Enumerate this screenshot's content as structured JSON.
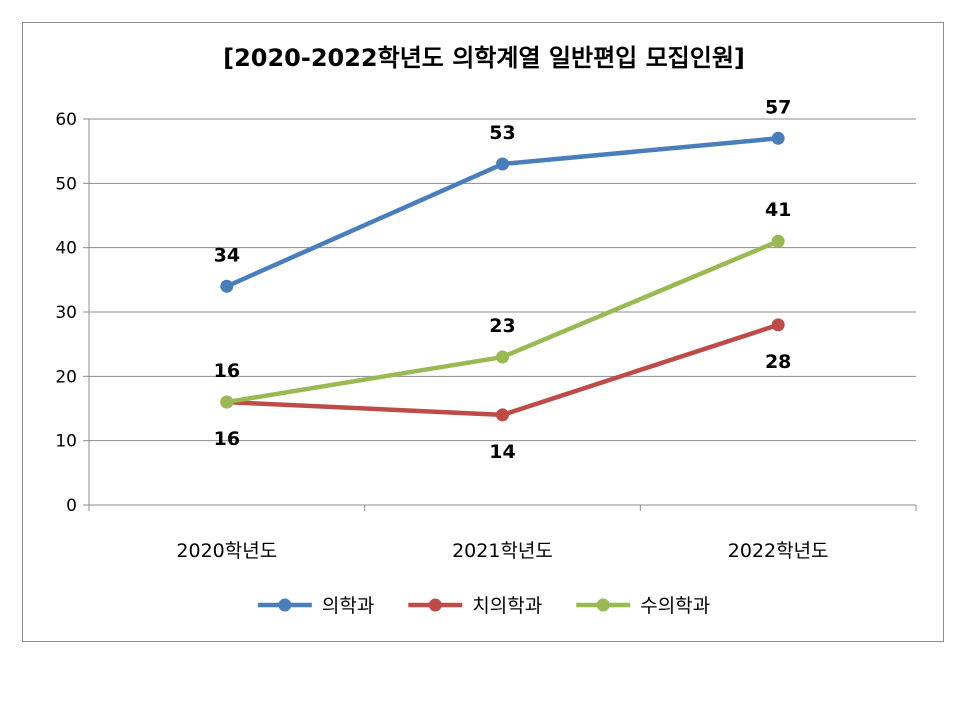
{
  "chart_data": {
    "type": "line",
    "title": "[2020-2022학년도 의학계열 일반편입 모집인원]",
    "xlabel": "",
    "ylabel": "",
    "categories": [
      "2020학년도",
      "2021학년도",
      "2022학년도"
    ],
    "ylim": [
      0,
      60
    ],
    "yticks": [
      0,
      10,
      20,
      30,
      40,
      50,
      60
    ],
    "grid": true,
    "legend_position": "bottom",
    "series": [
      {
        "name": "의학과",
        "values": [
          34,
          53,
          57
        ],
        "color": "#4a7ebb",
        "label_position": "above"
      },
      {
        "name": "치의학과",
        "values": [
          16,
          14,
          28
        ],
        "color": "#be4b48",
        "label_position": "below"
      },
      {
        "name": "수의학과",
        "values": [
          16,
          23,
          41
        ],
        "color": "#98b954",
        "label_position": "above"
      }
    ]
  }
}
